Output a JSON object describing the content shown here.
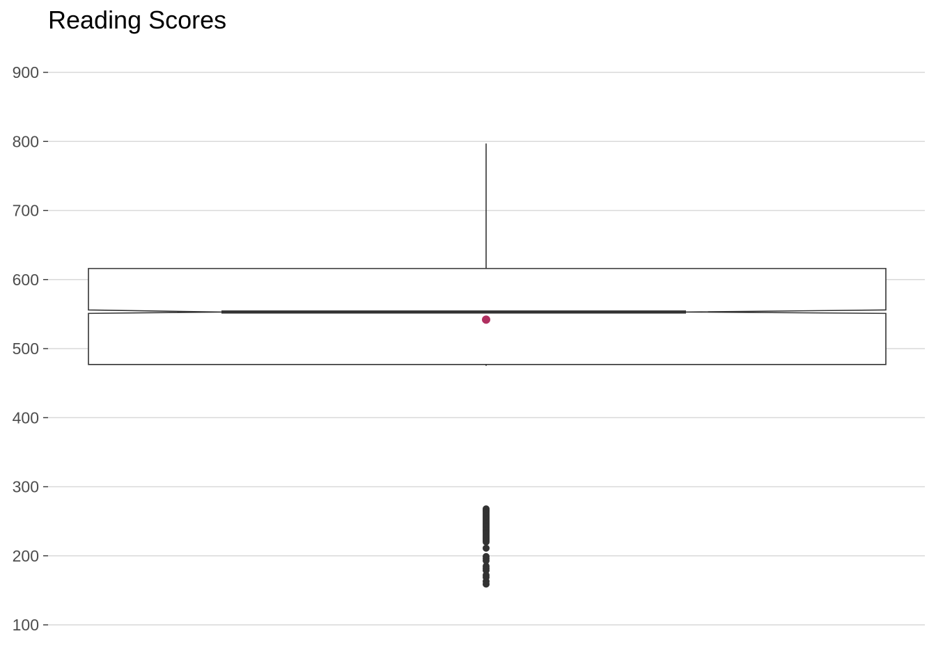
{
  "chart_data": {
    "type": "box",
    "title": "Reading Scores",
    "xlabel": "",
    "ylabel": "",
    "ylim": [
      100,
      900
    ],
    "yticks": [
      100,
      200,
      300,
      400,
      500,
      600,
      700,
      800,
      900
    ],
    "grid": true,
    "notched": true,
    "box": {
      "whisker_low": 475,
      "q1": 477,
      "notch_low": 551,
      "median": 553,
      "notch_high": 556,
      "q3": 616,
      "whisker_high": 797,
      "mean": 542
    },
    "outliers": [
      268,
      266,
      264,
      262,
      260,
      258,
      256,
      254,
      252,
      250,
      248,
      246,
      244,
      242,
      240,
      238,
      236,
      234,
      232,
      230,
      228,
      226,
      224,
      222,
      220,
      211,
      199,
      196,
      193,
      185,
      182,
      179,
      172,
      169,
      163,
      159
    ],
    "colors": {
      "box_line": "#333333",
      "mean_point": "#b03060",
      "outlier": "#333333",
      "grid": "#d9d9d9",
      "tick_label": "#4d4d4d"
    }
  }
}
